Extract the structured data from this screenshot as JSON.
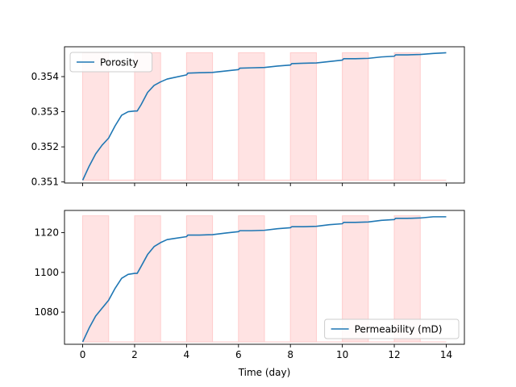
{
  "chart_data": [
    {
      "type": "line",
      "ylim": [
        0.35097,
        0.35485
      ],
      "xlim": [
        -0.7,
        14.7
      ],
      "yticks": [
        0.351,
        0.352,
        0.353,
        0.354
      ],
      "ytick_labels": [
        "0.351",
        "0.352",
        "0.353",
        "0.354"
      ],
      "xtick_labels": [],
      "xlabel": "",
      "ylabel": "",
      "grid": false,
      "legend": {
        "loc": "upper-left",
        "entries": [
          "Porosity"
        ]
      },
      "series": [
        {
          "name": "Porosity",
          "color": "#1f77b4",
          "x": [
            0,
            0.25,
            0.5,
            0.75,
            1.0,
            1.25,
            1.5,
            1.75,
            2.0,
            2.1,
            2.25,
            2.5,
            2.75,
            3.0,
            3.25,
            3.5,
            4.0,
            4.05,
            4.5,
            5.0,
            5.5,
            6.0,
            6.05,
            6.5,
            7.0,
            7.5,
            8.0,
            8.05,
            8.5,
            9.0,
            9.5,
            10.0,
            10.05,
            10.5,
            11.0,
            11.5,
            12.0,
            12.05,
            12.5,
            13.0,
            13.5,
            14.0
          ],
          "y": [
            0.35105,
            0.35145,
            0.3518,
            0.35205,
            0.35225,
            0.3526,
            0.3529,
            0.353,
            0.35302,
            0.35302,
            0.3532,
            0.35355,
            0.35375,
            0.35385,
            0.35393,
            0.35397,
            0.35405,
            0.3541,
            0.35411,
            0.35412,
            0.35416,
            0.3542,
            0.35424,
            0.35425,
            0.35426,
            0.3543,
            0.35433,
            0.35437,
            0.35438,
            0.35439,
            0.35443,
            0.35447,
            0.35451,
            0.35451,
            0.35452,
            0.35456,
            0.35458,
            0.35462,
            0.35462,
            0.35463,
            0.35466,
            0.35468
          ]
        }
      ],
      "shaded_spans": {
        "color": "#ffcccc",
        "ranges": [
          [
            0,
            1
          ],
          [
            2,
            3
          ],
          [
            4,
            5
          ],
          [
            6,
            7
          ],
          [
            8,
            9
          ],
          [
            10,
            11
          ],
          [
            12,
            13
          ]
        ],
        "y_range": [
          0.35105,
          0.35468
        ]
      },
      "baseline": {
        "y": 0.35105,
        "x": [
          0,
          14
        ],
        "color": "#ffcccc"
      }
    },
    {
      "type": "line",
      "ylim": [
        1063.8,
        1131.2
      ],
      "xlim": [
        -0.7,
        14.7
      ],
      "yticks": [
        1080,
        1100,
        1120
      ],
      "ytick_labels": [
        "1080",
        "1100",
        "1120"
      ],
      "xticks": [
        0,
        2,
        4,
        6,
        8,
        10,
        12,
        14
      ],
      "xtick_labels": [
        "0",
        "2",
        "4",
        "6",
        "8",
        "10",
        "12",
        "14"
      ],
      "xlabel": "Time (day)",
      "ylabel": "",
      "grid": false,
      "legend": {
        "loc": "lower-right",
        "entries": [
          "Permeability (mD)"
        ]
      },
      "series": [
        {
          "name": "Permeability (mD)",
          "color": "#1f77b4",
          "x": [
            0,
            0.25,
            0.5,
            0.75,
            1.0,
            1.25,
            1.5,
            1.75,
            2.0,
            2.1,
            2.25,
            2.5,
            2.75,
            3.0,
            3.25,
            3.5,
            4.0,
            4.05,
            4.5,
            5.0,
            5.5,
            6.0,
            6.05,
            6.5,
            7.0,
            7.5,
            8.0,
            8.05,
            8.5,
            9.0,
            9.5,
            10.0,
            10.05,
            10.5,
            11.0,
            11.5,
            12.0,
            12.05,
            12.5,
            13.0,
            13.5,
            14.0
          ],
          "y": [
            1065,
            1072,
            1078,
            1082,
            1086,
            1092,
            1097,
            1099,
            1099.5,
            1099.5,
            1103,
            1109,
            1113,
            1115,
            1116.5,
            1117,
            1118,
            1118.8,
            1118.8,
            1119,
            1119.8,
            1120.5,
            1121,
            1121,
            1121.2,
            1122,
            1122.5,
            1123,
            1123,
            1123.2,
            1124,
            1124.5,
            1125.2,
            1125.2,
            1125.4,
            1126.2,
            1126.6,
            1127.2,
            1127.2,
            1127.4,
            1128,
            1128
          ]
        }
      ],
      "shaded_spans": {
        "color": "#ffcccc",
        "ranges": [
          [
            0,
            1
          ],
          [
            2,
            3
          ],
          [
            4,
            5
          ],
          [
            6,
            7
          ],
          [
            8,
            9
          ],
          [
            10,
            11
          ],
          [
            12,
            13
          ]
        ],
        "y_range": [
          1065,
          1128.5
        ]
      },
      "baseline": {
        "y": 1065,
        "x": [
          0,
          14
        ],
        "color": "#ffcccc"
      }
    }
  ]
}
